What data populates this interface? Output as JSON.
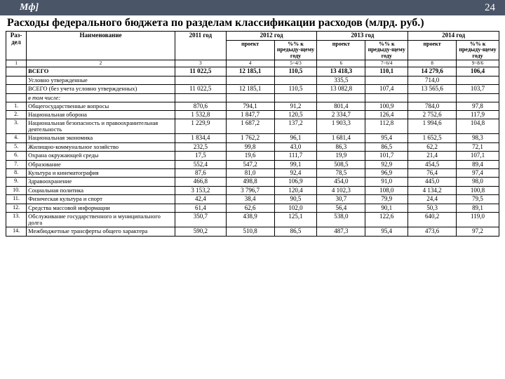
{
  "header": {
    "logo": "Мф]",
    "page_no": "24"
  },
  "title": "Расходы федерального бюджета по разделам классификации расходов (млрд. руб.)",
  "cols": {
    "razdel": "Раз-дел",
    "name": "Наименование",
    "y2011": "2011 год",
    "y2012": "2012 год",
    "y2013": "2013 год",
    "y2014": "2014 год",
    "proekt": "проект",
    "pct": "%% к предыду-щему году"
  },
  "formula_row": [
    "1",
    "2",
    "3",
    "4",
    "5=4/3",
    "6",
    "7=6/4",
    "8",
    "9=8/6"
  ],
  "rows": [
    {
      "no": "",
      "name": "ВСЕГО",
      "bold": true,
      "v": [
        "11 022,5",
        "12 185,1",
        "110,5",
        "13 418,3",
        "110,1",
        "14 279,6",
        "106,4"
      ]
    },
    {
      "no": "",
      "name": "Условно утвержденные",
      "v": [
        "",
        "",
        "",
        "335,5",
        "",
        "714,0",
        ""
      ]
    },
    {
      "no": "",
      "name": "ВСЕГО (без учета условно утвержденных)",
      "v": [
        "11 022,5",
        "12 185,1",
        "110,5",
        "13 082,8",
        "107,4",
        "13 565,6",
        "103,7"
      ]
    },
    {
      "no": "",
      "name": "в том числе:",
      "italic": true,
      "v": [
        "",
        "",
        "",
        "",
        "",
        "",
        ""
      ]
    },
    {
      "no": "1.",
      "name": "Общегосударственные вопросы",
      "v": [
        "870,6",
        "794,1",
        "91,2",
        "801,4",
        "100,9",
        "784,0",
        "97,8"
      ]
    },
    {
      "no": "2.",
      "name": "Национальная оборона",
      "v": [
        "1 532,8",
        "1 847,7",
        "120,5",
        "2 334,7",
        "126,4",
        "2 752,6",
        "117,9"
      ]
    },
    {
      "no": "3.",
      "name": "Национальная безопасность и правоохранительная деятельность",
      "v": [
        "1 229,9",
        "1 687,2",
        "137,2",
        "1 903,3",
        "112,8",
        "1 994,6",
        "104,8"
      ]
    },
    {
      "no": "4.",
      "name": "Национальная экономика",
      "v": [
        "1 834,4",
        "1 762,2",
        "96,1",
        "1 681,4",
        "95,4",
        "1 652,5",
        "98,3"
      ]
    },
    {
      "no": "5.",
      "name": "Жилищно-коммунальное хозяйство",
      "v": [
        "232,5",
        "99,8",
        "43,0",
        "86,3",
        "86,5",
        "62,2",
        "72,1"
      ]
    },
    {
      "no": "6.",
      "name": "Охрана окружающей среды",
      "v": [
        "17,5",
        "19,6",
        "111,7",
        "19,9",
        "101,7",
        "21,4",
        "107,1"
      ]
    },
    {
      "no": "7.",
      "name": "Образование",
      "v": [
        "552,4",
        "547,2",
        "99,1",
        "508,5",
        "92,9",
        "454,5",
        "89,4"
      ]
    },
    {
      "no": "8.",
      "name": "Культура и кинематография",
      "v": [
        "87,6",
        "81,0",
        "92,4",
        "78,5",
        "96,9",
        "76,4",
        "97,4"
      ]
    },
    {
      "no": "9.",
      "name": "Здравоохранение",
      "v": [
        "466,8",
        "498,8",
        "106,9",
        "454,0",
        "91,0",
        "445,0",
        "98,0"
      ]
    },
    {
      "no": "10.",
      "name": "Социальная политика",
      "v": [
        "3 153,2",
        "3 796,7",
        "120,4",
        "4 102,3",
        "108,0",
        "4 134,2",
        "100,8"
      ]
    },
    {
      "no": "11.",
      "name": "Физическая культура и спорт",
      "v": [
        "42,4",
        "38,4",
        "90,5",
        "30,7",
        "79,9",
        "24,4",
        "79,5"
      ]
    },
    {
      "no": "12.",
      "name": "Средства массовой информации",
      "v": [
        "61,4",
        "62,6",
        "102,0",
        "56,4",
        "90,1",
        "50,3",
        "89,1"
      ]
    },
    {
      "no": "13.",
      "name": "Обслуживание государственного и муниципального долга",
      "v": [
        "350,7",
        "438,9",
        "125,1",
        "538,0",
        "122,6",
        "640,2",
        "119,0"
      ]
    },
    {
      "no": "14.",
      "name": "Межбюджетные трансферты общего характера",
      "v": [
        "590,2",
        "510,8",
        "86,5",
        "487,3",
        "95,4",
        "473,6",
        "97,2"
      ]
    }
  ]
}
